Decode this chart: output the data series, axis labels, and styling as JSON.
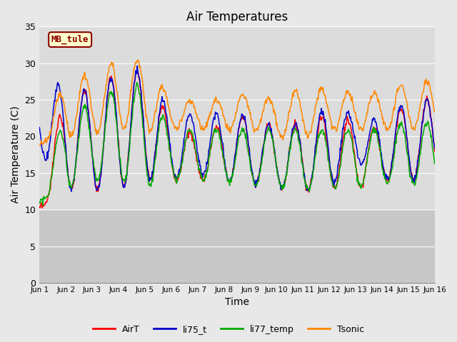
{
  "title": "Air Temperatures",
  "xlabel": "Time",
  "ylabel": "Air Temperature (C)",
  "ylim": [
    0,
    35
  ],
  "xlim": [
    0,
    15
  ],
  "bg_plot": "#dcdcdc",
  "bg_lower": "#c8c8c8",
  "bg_fig": "#e8e8e8",
  "grid_color": "#ffffff",
  "annotation_text": "MB_tule",
  "annotation_box_color": "#ffffcc",
  "annotation_border_color": "#8b0000",
  "annotation_text_color": "#8b0000",
  "colors": {
    "AirT": "#ff0000",
    "li75_t": "#0000cc",
    "li77_temp": "#00aa00",
    "Tsonic": "#ff8800"
  },
  "xtick_labels": [
    "Jun 1",
    "Jun 2",
    "Jun 3",
    "Jun 4",
    "Jun 5",
    "Jun 6",
    "Jun 7",
    "Jun 8",
    "Jun 9",
    "Jun 10",
    "Jun 11",
    "Jun 12",
    "Jun 13",
    "Jun 14",
    "Jun 15",
    "Jun 16"
  ],
  "ytick_positions": [
    0,
    5,
    10,
    15,
    20,
    25,
    30,
    35
  ],
  "days": 15,
  "series": {
    "AirT": {
      "night": [
        10,
        13,
        12.5,
        13,
        14,
        14,
        14,
        14,
        13.5,
        13,
        12.5,
        13,
        13,
        14,
        14
      ],
      "day": [
        10,
        27,
        26,
        29,
        29,
        22,
        20,
        22,
        23,
        21,
        22,
        23,
        22,
        21,
        25
      ]
    },
    "li75_t": {
      "night": [
        18,
        13,
        12.5,
        13,
        14,
        14,
        15,
        14,
        13.5,
        13,
        12.5,
        13,
        17,
        14,
        14
      ],
      "day": [
        27,
        27,
        26,
        29,
        29,
        23,
        23,
        23,
        23,
        21,
        22,
        24,
        23,
        22,
        25
      ]
    },
    "li77_temp": {
      "night": [
        11,
        13,
        14,
        14,
        13,
        14,
        14,
        14,
        13.5,
        13,
        12.5,
        13,
        13,
        13.5,
        13.5
      ],
      "day": [
        11,
        24,
        24,
        27,
        27,
        21,
        21,
        21,
        21,
        21,
        21,
        21,
        21,
        21,
        22
      ]
    },
    "Tsonic": {
      "night": [
        19,
        20,
        20.5,
        21,
        21,
        21,
        21,
        21,
        21,
        20,
        20,
        21,
        21,
        21,
        21
      ],
      "day": [
        19,
        28,
        28.5,
        30.5,
        30.5,
        25,
        25,
        25,
        26,
        25,
        26.5,
        26.5,
        26,
        26,
        27.5
      ]
    }
  }
}
